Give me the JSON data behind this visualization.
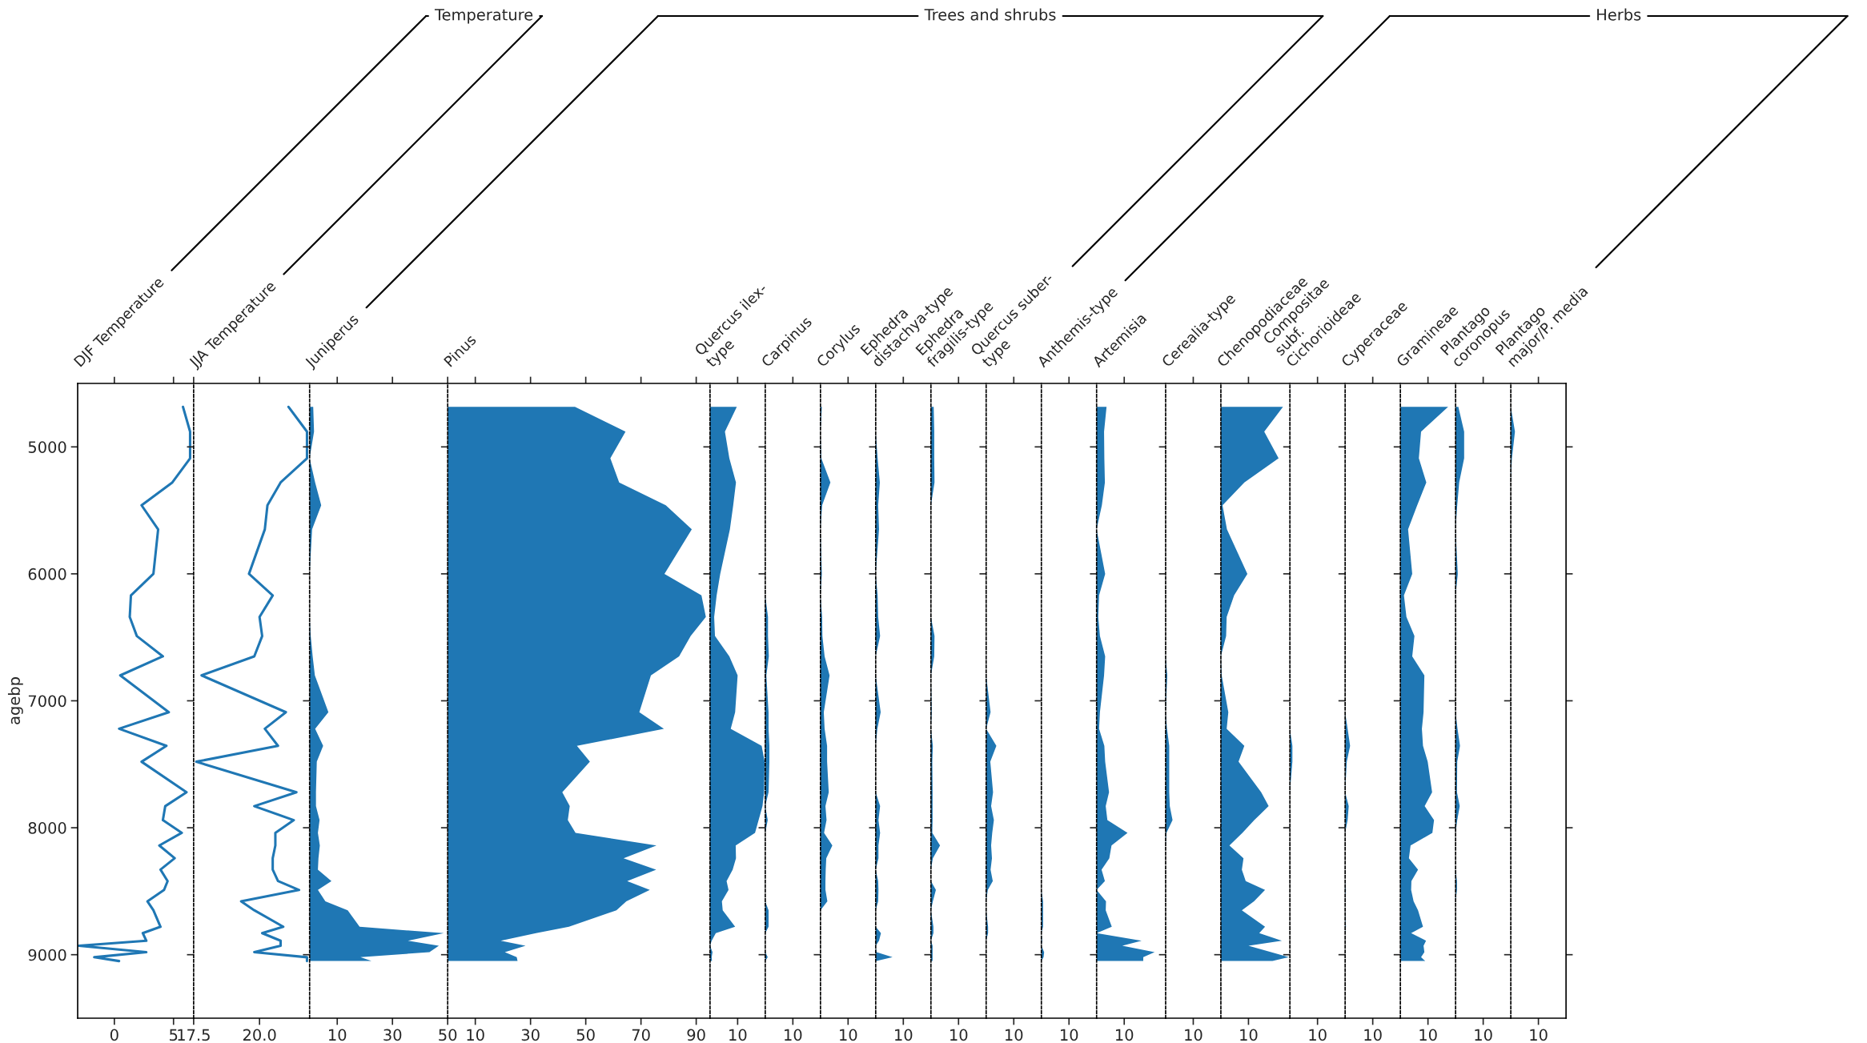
{
  "chart_data": [
    {
      "type": "line",
      "title": "DJF Temperature",
      "annotations": [
        "Temperature"
      ],
      "ylabel": "agebp",
      "orientation": "horizontal",
      "color": "#1f77b4",
      "xlim": [
        -3.1,
        6.7
      ],
      "xticks": [
        0,
        5
      ],
      "ylim": [
        9500,
        4500
      ],
      "yticks": [
        5000,
        6000,
        7000,
        8000,
        9000
      ],
      "x": [
        4685,
        4880,
        5090,
        5280,
        5460,
        5650,
        6000,
        6170,
        6340,
        6490,
        6650,
        6800,
        7090,
        7220,
        7355,
        7480,
        7720,
        7830,
        7940,
        8040,
        8140,
        8240,
        8330,
        8420,
        8490,
        8580,
        8650,
        8780,
        8830,
        8890,
        8930,
        8980,
        9020,
        9050
      ],
      "values": [
        5.8,
        6.4,
        6.4,
        4.9,
        2.3,
        3.7,
        3.3,
        1.4,
        1.3,
        1.9,
        4.1,
        0.5,
        4.6,
        0.4,
        4.4,
        2.3,
        6.1,
        4.3,
        4.1,
        5.7,
        3.8,
        5.1,
        3.9,
        4.5,
        4.2,
        2.8,
        3.3,
        3.9,
        2.4,
        2.7,
        -3.0,
        2.7,
        -1.7,
        0.4
      ]
    },
    {
      "type": "line",
      "title": "JJA Temperature",
      "orientation": "horizontal",
      "color": "#1f77b4",
      "xlim": [
        17.5,
        21.9
      ],
      "xticks": [
        {
          "value": 17.5,
          "label": "17.5"
        },
        {
          "value": 20,
          "label": "20.0"
        }
      ],
      "ylim": [
        9500,
        4500
      ],
      "yticks": [
        5000,
        6000,
        7000,
        8000,
        9000
      ],
      "tick_labels": "x",
      "x": [
        4685,
        4880,
        5090,
        5280,
        5460,
        5650,
        6000,
        6170,
        6340,
        6490,
        6650,
        6800,
        7090,
        7220,
        7355,
        7480,
        7720,
        7830,
        7940,
        8040,
        8140,
        8240,
        8330,
        8420,
        8490,
        8580,
        8650,
        8780,
        8830,
        8890,
        8930,
        8980,
        9020,
        9050
      ],
      "values": [
        21.1,
        21.8,
        21.8,
        20.8,
        20.3,
        20.2,
        19.6,
        20.5,
        20.0,
        20.1,
        19.8,
        17.8,
        21.0,
        20.2,
        20.7,
        17.6,
        21.4,
        19.8,
        21.3,
        20.6,
        20.6,
        20.5,
        20.5,
        20.7,
        21.5,
        19.3,
        19.8,
        20.9,
        20.1,
        20.8,
        20.8,
        19.8,
        21.8,
        21.8
      ]
    },
    {
      "type": "area",
      "title": "Juniperus",
      "annotations": [
        "Trees and shrubs"
      ],
      "orientation": "horizontal",
      "color": "#1f77b4",
      "xlim": [
        0,
        50
      ],
      "xticks": [
        10,
        30,
        50
      ],
      "ylim": [
        9500,
        4500
      ],
      "yticks": [
        5000,
        6000,
        7000,
        8000,
        9000
      ],
      "tick_labels": "x",
      "x": [
        4685,
        4880,
        5090,
        5280,
        5460,
        5650,
        6000,
        6170,
        6340,
        6490,
        6650,
        6800,
        7090,
        7220,
        7355,
        7480,
        7720,
        7830,
        7940,
        8040,
        8140,
        8240,
        8330,
        8420,
        8490,
        8580,
        8650,
        8780,
        8830,
        8890,
        8930,
        8980,
        9020,
        9050
      ],
      "values": [
        1.3,
        1.6,
        0,
        2.0,
        4.2,
        0.9,
        0,
        0,
        0,
        0.4,
        1.1,
        1.9,
        6.8,
        2.0,
        4.9,
        2.6,
        2.3,
        2.3,
        3.6,
        3.0,
        3.7,
        3.2,
        3.0,
        7.9,
        3.0,
        5.7,
        13.8,
        18.1,
        48.6,
        35.6,
        46.8,
        43.4,
        18.4,
        22.4
      ]
    },
    {
      "type": "area",
      "title": "Pinus",
      "orientation": "horizontal",
      "color": "#1f77b4",
      "xlim": [
        0,
        95
      ],
      "xticks": [
        10,
        30,
        50,
        70,
        90
      ],
      "ylim": [
        9500,
        4500
      ],
      "yticks": [
        5000,
        6000,
        7000,
        8000,
        9000
      ],
      "tick_labels": "x",
      "x": [
        4685,
        4880,
        5090,
        5280,
        5460,
        5650,
        6000,
        6170,
        6340,
        6490,
        6650,
        6800,
        7090,
        7220,
        7355,
        7480,
        7720,
        7830,
        7940,
        8040,
        8140,
        8240,
        8330,
        8420,
        8490,
        8580,
        8650,
        8780,
        8830,
        8890,
        8930,
        8980,
        9020,
        9050
      ],
      "values": [
        46.1,
        64.4,
        58.9,
        62.1,
        79.0,
        88.4,
        78.5,
        91.9,
        93.5,
        88.0,
        83.8,
        73.6,
        69.4,
        78.3,
        46.8,
        51.5,
        41.5,
        44.2,
        43.5,
        46.3,
        75.6,
        63.7,
        75.5,
        65.0,
        73.2,
        64.7,
        61.1,
        43.9,
        32.0,
        19.2,
        28.2,
        20.7,
        25.0,
        25.3
      ]
    },
    {
      "type": "area",
      "title": "Quercus ilex-\ntype",
      "orientation": "horizontal",
      "color": "#1f77b4",
      "xlim": [
        0,
        20
      ],
      "xticks": [
        10
      ],
      "ylim": [
        9500,
        4500
      ],
      "yticks": [
        5000,
        6000,
        7000,
        8000,
        9000
      ],
      "tick_labels": "x",
      "x": [
        4685,
        4880,
        5090,
        5280,
        5460,
        5650,
        6000,
        6170,
        6340,
        6490,
        6650,
        6800,
        7090,
        7220,
        7355,
        7480,
        7720,
        7830,
        7940,
        8040,
        8140,
        8240,
        8330,
        8420,
        8490,
        8580,
        8650,
        8780,
        8830,
        8890,
        8930,
        8980,
        9020,
        9050
      ],
      "values": [
        9.7,
        5.4,
        7.0,
        9.4,
        8.4,
        7.2,
        3.7,
        2.4,
        1.5,
        1.8,
        7.0,
        10.0,
        9.1,
        7.5,
        18.7,
        19.8,
        19.6,
        19.0,
        17.6,
        16.3,
        9.3,
        9.4,
        8.2,
        6.0,
        6.7,
        4.3,
        4.6,
        9.1,
        2.1,
        0.6,
        0,
        0.9,
        0.6,
        0.7
      ]
    },
    {
      "type": "area",
      "title": "Carpinus",
      "orientation": "horizontal",
      "color": "#1f77b4",
      "xlim": [
        0,
        20
      ],
      "xticks": [
        10
      ],
      "ylim": [
        9500,
        4500
      ],
      "yticks": [
        5000,
        6000,
        7000,
        8000,
        9000
      ],
      "tick_labels": "x",
      "x": [
        4685,
        4880,
        5090,
        5280,
        5460,
        5650,
        6000,
        6170,
        6340,
        6490,
        6650,
        6800,
        7090,
        7220,
        7355,
        7480,
        7720,
        7830,
        7940,
        8040,
        8140,
        8240,
        8330,
        8420,
        8490,
        8580,
        8650,
        8780,
        8830,
        8890,
        8930,
        8980,
        9020,
        9050
      ],
      "values": [
        0,
        0,
        0,
        0,
        0,
        0,
        0,
        0,
        1.0,
        1.0,
        1.3,
        0.4,
        1.2,
        1.2,
        1.5,
        1.5,
        1.2,
        0,
        0.9,
        0,
        0,
        0,
        0,
        0,
        0,
        0,
        1.2,
        1.2,
        0,
        0,
        0,
        0,
        0.9,
        0
      ]
    },
    {
      "type": "area",
      "title": "Corylus",
      "orientation": "horizontal",
      "color": "#1f77b4",
      "xlim": [
        0,
        20
      ],
      "xticks": [
        10
      ],
      "ylim": [
        9500,
        4500
      ],
      "yticks": [
        5000,
        6000,
        7000,
        8000,
        9000
      ],
      "tick_labels": "x",
      "x": [
        4685,
        4880,
        5090,
        5280,
        5460,
        5650,
        6000,
        6170,
        6340,
        6490,
        6650,
        6800,
        7090,
        7220,
        7355,
        7480,
        7720,
        7830,
        7940,
        8040,
        8140,
        8240,
        8330,
        8420,
        8490,
        8580,
        8650,
        8780,
        8830,
        8890,
        8930,
        8980,
        9020,
        9050
      ],
      "values": [
        0.5,
        0,
        0.3,
        3.6,
        0.6,
        0,
        0.5,
        0,
        0.6,
        0.7,
        1.5,
        3.3,
        1.2,
        1.5,
        2.4,
        2.4,
        3.0,
        1.8,
        2.2,
        1.3,
        4.3,
        2.1,
        1.9,
        1.8,
        1.8,
        2.5,
        0,
        0,
        0,
        0,
        0,
        0,
        0,
        0
      ]
    },
    {
      "type": "area",
      "title": "Ephedra\ndistachya-type",
      "orientation": "horizontal",
      "color": "#1f77b4",
      "xlim": [
        0,
        20
      ],
      "xticks": [
        10
      ],
      "ylim": [
        9500,
        4500
      ],
      "yticks": [
        5000,
        6000,
        7000,
        8000,
        9000
      ],
      "tick_labels": "x",
      "x": [
        4685,
        4880,
        5090,
        5280,
        5460,
        5650,
        6000,
        6170,
        6340,
        6490,
        6650,
        6800,
        7090,
        7220,
        7355,
        7480,
        7720,
        7830,
        7940,
        8040,
        8140,
        8240,
        8330,
        8420,
        8490,
        8580,
        8650,
        8780,
        8830,
        8890,
        8930,
        8980,
        9020,
        9050
      ],
      "values": [
        0,
        0,
        0.7,
        1.5,
        0.9,
        1.2,
        0,
        0.7,
        0.9,
        1.6,
        0,
        0,
        1.8,
        0.6,
        0,
        0,
        0,
        1.6,
        1.0,
        1.6,
        1.0,
        1.0,
        0,
        0.9,
        1.0,
        0.9,
        0,
        0,
        1.9,
        1.2,
        0,
        0.3,
        6.1,
        0.3
      ]
    },
    {
      "type": "area",
      "title": "Ephedra\nfragilis-type",
      "orientation": "horizontal",
      "color": "#1f77b4",
      "xlim": [
        0,
        20
      ],
      "xticks": [
        10
      ],
      "ylim": [
        9500,
        4500
      ],
      "yticks": [
        5000,
        6000,
        7000,
        8000,
        9000
      ],
      "tick_labels": "x",
      "x": [
        4685,
        4880,
        5090,
        5280,
        5460,
        5650,
        6000,
        6170,
        6340,
        6490,
        6650,
        6800,
        7090,
        7220,
        7355,
        7480,
        7720,
        7830,
        7940,
        8040,
        8140,
        8240,
        8330,
        8420,
        8490,
        8580,
        8650,
        8780,
        8830,
        8890,
        8930,
        8980,
        9020,
        9050
      ],
      "values": [
        1.0,
        1.2,
        1.2,
        1.3,
        0,
        0,
        0,
        0,
        0,
        1.3,
        1.2,
        0,
        0.3,
        0,
        0.7,
        0.5,
        0.6,
        0.6,
        0.6,
        0.5,
        3.3,
        0.7,
        0,
        0,
        1.8,
        0.7,
        0,
        0.9,
        0.9,
        0,
        0.6,
        0.6,
        0.6,
        0.6
      ]
    },
    {
      "type": "area",
      "title": "Quercus suber-\ntype",
      "orientation": "horizontal",
      "color": "#1f77b4",
      "xlim": [
        0,
        20
      ],
      "xticks": [
        10
      ],
      "ylim": [
        9500,
        4500
      ],
      "yticks": [
        5000,
        6000,
        7000,
        8000,
        9000
      ],
      "tick_labels": "x",
      "x": [
        4685,
        4880,
        5090,
        5280,
        5460,
        5650,
        6000,
        6170,
        6340,
        6490,
        6650,
        6800,
        7090,
        7220,
        7355,
        7480,
        7720,
        7830,
        7940,
        8040,
        8140,
        8240,
        8330,
        8420,
        8490,
        8580,
        8650,
        8780,
        8830,
        8890,
        8930,
        8980,
        9020,
        9050
      ],
      "values": [
        0,
        0,
        0,
        0,
        0,
        0,
        0,
        0,
        0,
        0,
        0,
        0,
        1.6,
        0,
        3.7,
        1.5,
        2.5,
        1.8,
        2.8,
        2.2,
        1.8,
        2.1,
        1.6,
        2.4,
        0.6,
        0,
        0,
        0.7,
        0.7,
        0,
        0,
        0,
        0,
        0
      ]
    },
    {
      "type": "area",
      "title": "Anthemis-type",
      "annotations": [
        "Herbs"
      ],
      "orientation": "horizontal",
      "color": "#1f77b4",
      "xlim": [
        0,
        20
      ],
      "xticks": [
        10
      ],
      "ylim": [
        9500,
        4500
      ],
      "yticks": [
        5000,
        6000,
        7000,
        8000,
        9000
      ],
      "tick_labels": "x",
      "x": [
        4685,
        4880,
        5090,
        5280,
        5460,
        5650,
        6000,
        6170,
        6340,
        6490,
        6650,
        6800,
        7090,
        7220,
        7355,
        7480,
        7720,
        7830,
        7940,
        8040,
        8140,
        8240,
        8330,
        8420,
        8490,
        8580,
        8650,
        8780,
        8830,
        8890,
        8930,
        8980,
        9020,
        9050
      ],
      "values": [
        0,
        0,
        0,
        0,
        0,
        0,
        0,
        0,
        0,
        0,
        0,
        0,
        0,
        0,
        0,
        0,
        0,
        0,
        0,
        0,
        0,
        0,
        0,
        0,
        0,
        0.6,
        0.6,
        0.6,
        0,
        0.3,
        0,
        1.0,
        0.8,
        0
      ]
    },
    {
      "type": "area",
      "title": "Artemisia",
      "orientation": "horizontal",
      "color": "#1f77b4",
      "xlim": [
        0,
        25
      ],
      "xticks": [
        10
      ],
      "ylim": [
        9500,
        4500
      ],
      "yticks": [
        5000,
        6000,
        7000,
        8000,
        9000
      ],
      "tick_labels": "x",
      "x": [
        4685,
        4880,
        5090,
        5280,
        5460,
        5650,
        6000,
        6170,
        6340,
        6490,
        6650,
        6800,
        7090,
        7220,
        7355,
        7480,
        7720,
        7830,
        7940,
        8040,
        8140,
        8240,
        8330,
        8420,
        8490,
        8580,
        8650,
        8780,
        8830,
        8890,
        8930,
        8980,
        9020,
        9050
      ],
      "values": [
        3.6,
        2.7,
        2.8,
        3.0,
        1.9,
        0,
        3.1,
        0.9,
        0.6,
        1.2,
        3.1,
        2.7,
        1.2,
        0.9,
        2.8,
        3.1,
        4.5,
        3.3,
        3.9,
        11.2,
        5.4,
        4.6,
        1.8,
        3.0,
        0,
        3.4,
        3.3,
        5.5,
        0,
        16.3,
        9.3,
        21.0,
        16.9,
        16.9
      ]
    },
    {
      "type": "area",
      "title": "Cerealia-type",
      "orientation": "horizontal",
      "color": "#1f77b4",
      "xlim": [
        0,
        20
      ],
      "xticks": [
        10
      ],
      "ylim": [
        9500,
        4500
      ],
      "yticks": [
        5000,
        6000,
        7000,
        8000,
        9000
      ],
      "tick_labels": "x",
      "x": [
        4685,
        4880,
        5090,
        5280,
        5460,
        5650,
        6000,
        6170,
        6340,
        6490,
        6650,
        6800,
        7090,
        7220,
        7355,
        7480,
        7720,
        7830,
        7940,
        8040,
        8140,
        8240,
        8330,
        8420,
        8490,
        8580,
        8650,
        8780,
        8830,
        8890,
        8930,
        8980,
        9020,
        9050
      ],
      "values": [
        0,
        0,
        0,
        0,
        0,
        0,
        0,
        0,
        0,
        0,
        0,
        0.6,
        0,
        0.5,
        1.3,
        1.3,
        1.3,
        1.5,
        2.5,
        0.3,
        0,
        0,
        0,
        0,
        0,
        0,
        0,
        0,
        0,
        0,
        0,
        0,
        0,
        0
      ]
    },
    {
      "type": "area",
      "title": "Chenopodiaceae",
      "orientation": "horizontal",
      "color": "#1f77b4",
      "xlim": [
        0,
        25
      ],
      "xticks": [
        10
      ],
      "ylim": [
        9500,
        4500
      ],
      "yticks": [
        5000,
        6000,
        7000,
        8000,
        9000
      ],
      "tick_labels": "x",
      "x": [
        4685,
        4880,
        5090,
        5280,
        5460,
        5650,
        6000,
        6170,
        6340,
        6490,
        6650,
        6800,
        7090,
        7220,
        7355,
        7480,
        7720,
        7830,
        7940,
        8040,
        8140,
        8240,
        8330,
        8420,
        8490,
        8580,
        8650,
        8780,
        8830,
        8890,
        8930,
        8980,
        9020,
        9050
      ],
      "values": [
        22.5,
        15.7,
        20.9,
        8.5,
        0.6,
        2.2,
        9.6,
        4.8,
        2.1,
        1.9,
        0,
        0.3,
        2.7,
        2.1,
        8.5,
        6.4,
        14.6,
        17.3,
        12.1,
        7.8,
        3.1,
        8.2,
        7.6,
        9.0,
        16.0,
        12.0,
        7.6,
        16.0,
        13.9,
        22.1,
        10.0,
        18.2,
        24.6,
        18.7
      ]
    },
    {
      "type": "area",
      "title": "Compositae\nsubf.\nCichorioideae",
      "orientation": "horizontal",
      "color": "#1f77b4",
      "xlim": [
        0,
        20
      ],
      "xticks": [
        10
      ],
      "ylim": [
        9500,
        4500
      ],
      "yticks": [
        5000,
        6000,
        7000,
        8000,
        9000
      ],
      "tick_labels": "x",
      "x": [
        4685,
        4880,
        5090,
        5280,
        5460,
        5650,
        6000,
        6170,
        6340,
        6490,
        6650,
        6800,
        7090,
        7220,
        7355,
        7480,
        7720,
        7830,
        7940,
        8040,
        8140,
        8240,
        8330,
        8420,
        8490,
        8580,
        8650,
        8780,
        8830,
        8890,
        8930,
        8980,
        9020,
        9050
      ],
      "values": [
        0,
        0,
        0,
        0,
        0,
        0,
        0,
        0,
        0,
        0,
        0,
        0,
        0,
        0,
        0.9,
        0.9,
        0,
        0,
        0,
        0,
        0,
        0,
        0,
        0,
        0,
        0,
        0,
        0,
        0,
        0,
        0,
        0,
        0,
        0
      ]
    },
    {
      "type": "area",
      "title": "Cyperaceae",
      "orientation": "horizontal",
      "color": "#1f77b4",
      "xlim": [
        0,
        20
      ],
      "xticks": [
        10
      ],
      "ylim": [
        9500,
        4500
      ],
      "yticks": [
        5000,
        6000,
        7000,
        8000,
        9000
      ],
      "tick_labels": "x",
      "x": [
        4685,
        4880,
        5090,
        5280,
        5460,
        5650,
        6000,
        6170,
        6340,
        6490,
        6650,
        6800,
        7090,
        7220,
        7355,
        7480,
        7720,
        7830,
        7940,
        8040,
        8140,
        8240,
        8330,
        8420,
        8490,
        8580,
        8650,
        8780,
        8830,
        8890,
        8930,
        8980,
        9020,
        9050
      ],
      "values": [
        0,
        0,
        0,
        0,
        0,
        0,
        0,
        0,
        0,
        0,
        0,
        0,
        0,
        0.9,
        1.8,
        0.6,
        0,
        1.3,
        0.9,
        0,
        0,
        0,
        0,
        0,
        0.3,
        0,
        0,
        0.3,
        0,
        0,
        0,
        0,
        0,
        0
      ]
    },
    {
      "type": "area",
      "title": "Gramineae",
      "orientation": "horizontal",
      "color": "#1f77b4",
      "xlim": [
        0,
        20
      ],
      "xticks": [
        10
      ],
      "ylim": [
        9500,
        4500
      ],
      "yticks": [
        5000,
        6000,
        7000,
        8000,
        9000
      ],
      "tick_labels": "x",
      "x": [
        4685,
        4880,
        5090,
        5280,
        5460,
        5650,
        6000,
        6170,
        6340,
        6490,
        6650,
        6800,
        7090,
        7220,
        7355,
        7480,
        7720,
        7830,
        7940,
        8040,
        8140,
        8240,
        8330,
        8420,
        8490,
        8580,
        8650,
        8780,
        8830,
        8890,
        8930,
        8980,
        9020,
        9050
      ],
      "values": [
        17.3,
        7.5,
        6.7,
        9.4,
        6.1,
        2.8,
        4.3,
        1.3,
        2.2,
        5.1,
        4.3,
        8.7,
        8.4,
        7.8,
        8.2,
        9.9,
        11.5,
        8.8,
        12.2,
        11.6,
        3.7,
        3.1,
        6.4,
        4.0,
        3.9,
        4.8,
        6.4,
        8.2,
        3.9,
        9.3,
        8.4,
        8.7,
        7.5,
        9.0
      ]
    },
    {
      "type": "area",
      "title": "Plantago\ncoronopus",
      "orientation": "horizontal",
      "color": "#1f77b4",
      "xlim": [
        0,
        20
      ],
      "xticks": [
        10
      ],
      "ylim": [
        9500,
        4500
      ],
      "yticks": [
        5000,
        6000,
        7000,
        8000,
        9000
      ],
      "tick_labels": "x",
      "x": [
        4685,
        4880,
        5090,
        5280,
        5460,
        5650,
        6000,
        6170,
        6340,
        6490,
        6650,
        6800,
        7090,
        7220,
        7355,
        7480,
        7720,
        7830,
        7940,
        8040,
        8140,
        8240,
        8330,
        8420,
        8490,
        8580,
        8650,
        8780,
        8830,
        8890,
        8930,
        8980,
        9020,
        9050
      ],
      "values": [
        1.0,
        3.1,
        3.1,
        1.3,
        0.6,
        0,
        0.8,
        0,
        0,
        0,
        0,
        0,
        0,
        0.7,
        1.6,
        0.6,
        0.5,
        1.5,
        0.6,
        0,
        0,
        0,
        0,
        0.5,
        0.5,
        0,
        0,
        0,
        0,
        0,
        0,
        0,
        0,
        0
      ]
    },
    {
      "type": "area",
      "title": "Plantago\nmajor/P. media",
      "orientation": "horizontal",
      "color": "#1f77b4",
      "xlim": [
        0,
        20
      ],
      "xticks": [
        10
      ],
      "ylim": [
        9500,
        4500
      ],
      "yticks": [
        5000,
        6000,
        7000,
        8000,
        9000
      ],
      "tick_labels": "x",
      "x": [
        4685,
        4880,
        5090,
        5280,
        5460,
        5650,
        6000,
        6170,
        6340,
        6490,
        6650,
        6800,
        7090,
        7220,
        7355,
        7480,
        7720,
        7830,
        7940,
        8040,
        8140,
        8240,
        8330,
        8420,
        8490,
        8580,
        8650,
        8780,
        8830,
        8890,
        8930,
        8980,
        9020,
        9050
      ],
      "values": [
        0,
        1.5,
        0.4,
        0,
        0,
        0,
        0,
        0,
        0,
        0,
        0,
        0,
        0,
        0,
        0,
        0,
        0,
        0,
        0,
        0,
        0,
        0,
        0,
        0,
        0,
        0,
        0,
        0,
        0,
        0,
        0,
        0,
        0,
        0
      ]
    }
  ]
}
